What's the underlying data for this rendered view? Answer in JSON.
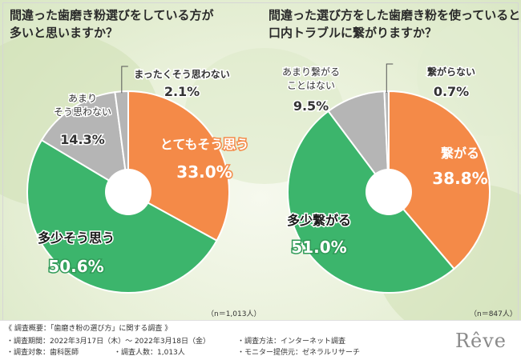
{
  "chart_data": [
    {
      "type": "pie",
      "title": "間違った歯磨き粉選びをしている方が多いと思いますか？",
      "title_lines": [
        "間違った歯磨き粉選びをしている方が",
        "多いと思いますか？"
      ],
      "note": "（n＝1,013人）",
      "slices": [
        {
          "label": "とてもそう思う",
          "value": 33.0,
          "value_text": "33.0%",
          "color": "#f48a48"
        },
        {
          "label": "多少そう思う",
          "value": 50.6,
          "value_text": "50.6%",
          "color": "#3cb56c"
        },
        {
          "label": "あまりそう思わない",
          "value": 14.3,
          "value_text": "14.3%",
          "color": "#b5b5b5"
        },
        {
          "label": "まったくそう思わない",
          "value": 2.1,
          "value_text": "2.1%",
          "color": "#b5b5b5"
        }
      ]
    },
    {
      "type": "pie",
      "title": "間違った選び方をした歯磨き粉を使っていると口内トラブルに繋がりますか？",
      "title_lines": [
        "間違った選び方をした歯磨き粉を使っていると",
        "口内トラブルに繋がりますか？"
      ],
      "note": "（n＝847人）",
      "slices": [
        {
          "label": "繋がる",
          "value": 38.8,
          "value_text": "38.8%",
          "color": "#f48a48"
        },
        {
          "label": "多少繋がる",
          "value": 51.0,
          "value_text": "51.0%",
          "color": "#3cb56c"
        },
        {
          "label": "あまり繋がることはない",
          "value": 9.5,
          "value_text": "9.5%",
          "color": "#b5b5b5"
        },
        {
          "label": "繋がらない",
          "value": 0.7,
          "value_text": "0.7%",
          "color": "#b5b5b5"
        }
      ]
    }
  ],
  "footer": {
    "heading": "《 調査概要：「歯磨き粉の選び方」に関する調査 》",
    "period": "・調査期間：2022年3月17日（木）～ 2022年3月18日（金）",
    "target": "・調査対象：歯科医師",
    "count": "・調査人数：1,013人",
    "method": "・調査方法：インターネット調査",
    "provider": "・モニター提供元：ゼネラルリサーチ"
  },
  "logo": "Rêve"
}
